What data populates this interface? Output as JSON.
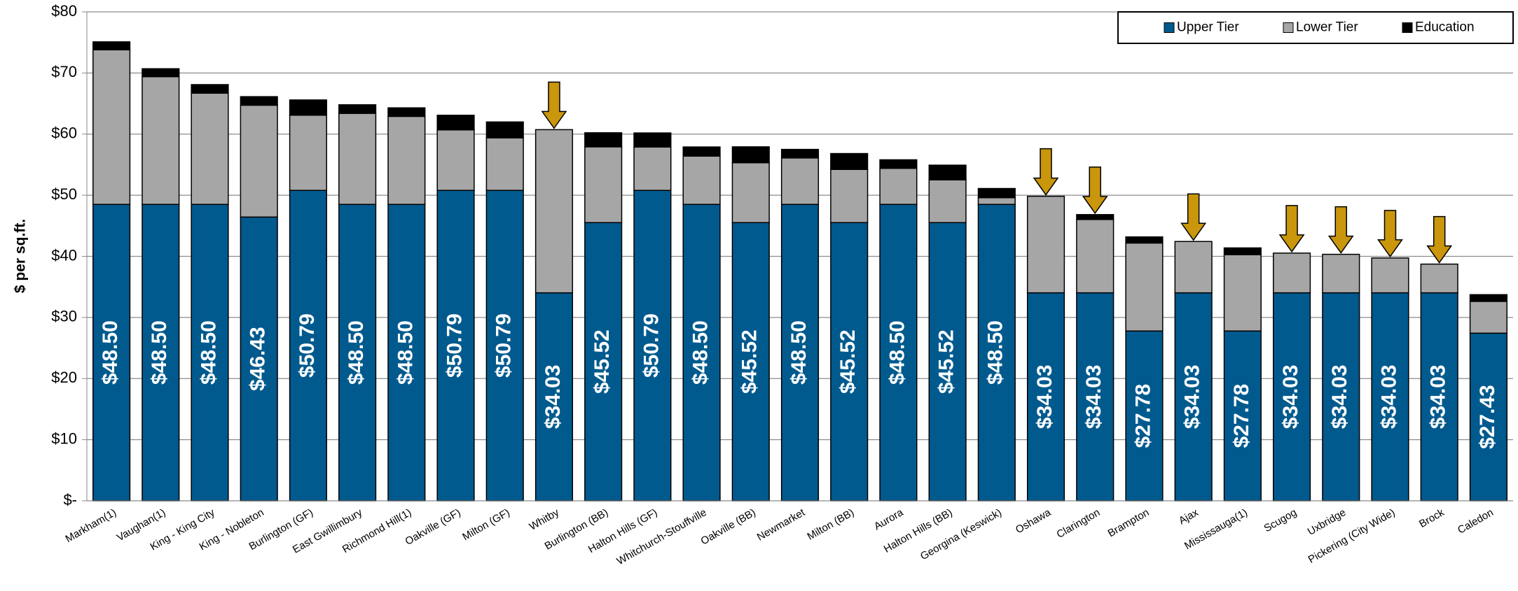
{
  "chart_data": {
    "type": "bar",
    "stacked": true,
    "y_label": "$ per sq.ft.",
    "categories": [
      "Markham(1)",
      "Vaughan(1)",
      "King - King City",
      "King - Nobleton",
      "Burlington (GF)",
      "East Gwillimbury",
      "Richmond Hill(1)",
      "Oakville (GF)",
      "Milton (GF)",
      "Whitby",
      "Burlington (BB)",
      "Halton Hills (GF)",
      "Whitchurch-Stouffville",
      "Oakville (BB)",
      "Newmarket",
      "Milton (BB)",
      "Aurora",
      "Halton Hills (BB)",
      "Georgina (Keswick)",
      "Oshawa",
      "Clarington",
      "Brampton",
      "Ajax",
      "Mississauga(1)",
      "Scugog",
      "Uxbridge",
      "Pickering (City Wide)",
      "Brock",
      "Caledon"
    ],
    "series": [
      {
        "name": "Upper Tier",
        "color": "#005a8e",
        "values": [
          48.5,
          48.5,
          48.5,
          46.43,
          50.79,
          48.5,
          48.5,
          50.79,
          50.79,
          34.03,
          45.52,
          50.79,
          48.5,
          45.52,
          48.5,
          45.52,
          48.5,
          45.52,
          48.5,
          34.03,
          34.03,
          27.78,
          34.03,
          27.78,
          34.03,
          34.03,
          34.03,
          34.03,
          27.43
        ],
        "value_labels": [
          "$48.50",
          "$48.50",
          "$48.50",
          "$46.43",
          "$50.79",
          "$48.50",
          "$48.50",
          "$50.79",
          "$50.79",
          "$34.03",
          "$45.52",
          "$50.79",
          "$48.50",
          "$45.52",
          "$48.50",
          "$45.52",
          "$48.50",
          "$45.52",
          "$48.50",
          "$34.03",
          "$34.03",
          "$27.78",
          "$34.03",
          "$27.78",
          "$34.03",
          "$34.03",
          "$34.03",
          "$34.03",
          "$27.43"
        ]
      },
      {
        "name": "Lower Tier",
        "color": "#a6a6a6",
        "values": [
          25.3,
          20.9,
          18.2,
          18.3,
          12.3,
          14.9,
          14.4,
          9.9,
          8.6,
          26.7,
          12.4,
          7.1,
          7.9,
          9.8,
          7.6,
          8.7,
          5.9,
          7.0,
          1.1,
          15.8,
          12.0,
          14.4,
          8.4,
          12.5,
          6.5,
          6.3,
          5.7,
          4.7,
          5.2
        ]
      },
      {
        "name": "Education",
        "color": "#000000",
        "values": [
          1.3,
          1.3,
          1.4,
          1.4,
          2.5,
          1.4,
          1.4,
          2.4,
          2.6,
          0,
          2.3,
          2.3,
          1.5,
          2.6,
          1.4,
          2.6,
          1.4,
          2.4,
          1.5,
          0,
          0.8,
          1.0,
          0,
          1.1,
          0,
          0,
          0,
          0,
          1.1
        ]
      }
    ],
    "annotated_categories": [
      "Whitby",
      "Oshawa",
      "Clarington",
      "Ajax",
      "Scugog",
      "Uxbridge",
      "Pickering (City Wide)",
      "Brock"
    ],
    "arrow_color": "#c9960c",
    "ylim": [
      0,
      80
    ],
    "yticks": [
      {
        "value": 0,
        "label": "$-"
      },
      {
        "value": 10,
        "label": "$10"
      },
      {
        "value": 20,
        "label": "$20"
      },
      {
        "value": 30,
        "label": "$30"
      },
      {
        "value": 40,
        "label": "$40"
      },
      {
        "value": 50,
        "label": "$50"
      },
      {
        "value": 60,
        "label": "$60"
      },
      {
        "value": 70,
        "label": "$70"
      },
      {
        "value": 80,
        "label": "$80"
      }
    ],
    "grid": true,
    "legend": "top-right"
  }
}
